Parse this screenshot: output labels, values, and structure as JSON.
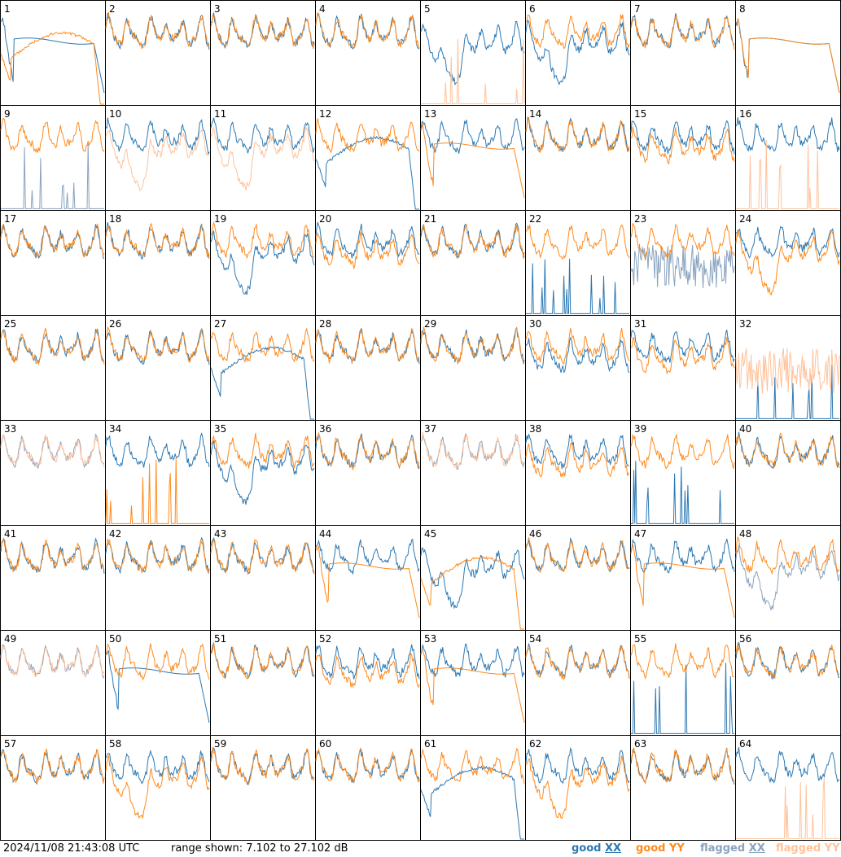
{
  "footer": {
    "timestamp": "2024/11/08 21:43:08 UTC",
    "range": "range shown: 7.102 to 27.102 dB"
  },
  "legend": [
    {
      "word": "good",
      "pol": "XX",
      "color": "#2b78b3"
    },
    {
      "word": "good",
      "pol": "YY",
      "color": "#ff8a1c"
    },
    {
      "word": "flagged",
      "pol": "XX",
      "color": "#8aa3bf"
    },
    {
      "word": "flagged",
      "pol": "YY",
      "color": "#ffc29a"
    }
  ],
  "colors": {
    "good_xx": "#2b78b3",
    "good_yy": "#ff8a1c",
    "flagged_xx": "#8aa3bf",
    "flagged_yy": "#ffc29a"
  },
  "chart_data": {
    "type": "line",
    "layout": "8x8 small multiples",
    "ylim_db": [
      7.102,
      27.102
    ],
    "antennas": [
      {
        "id": "1",
        "xx": "hump",
        "yy": "collapse",
        "xxf": false,
        "yyf": false
      },
      {
        "id": "2",
        "xx": "normal",
        "yy": "normal",
        "xxf": false,
        "yyf": false
      },
      {
        "id": "3",
        "xx": "normal",
        "yy": "normal",
        "xxf": false,
        "yyf": false
      },
      {
        "id": "4",
        "xx": "normal",
        "yy": "normal",
        "xxf": false,
        "yyf": false
      },
      {
        "id": "5",
        "xx": "dip",
        "yy": "spikes",
        "xxf": false,
        "yyf": true
      },
      {
        "id": "6",
        "xx": "dip",
        "yy": "normal",
        "xxf": false,
        "yyf": false
      },
      {
        "id": "7",
        "xx": "normal",
        "yy": "normal",
        "xxf": false,
        "yyf": false
      },
      {
        "id": "8",
        "xx": "hump",
        "yy": "hump",
        "xxf": false,
        "yyf": false
      },
      {
        "id": "9",
        "xx": "spikes",
        "yy": "normal",
        "xxf": true,
        "yyf": false
      },
      {
        "id": "10",
        "xx": "normal",
        "yy": "dip",
        "xxf": false,
        "yyf": true
      },
      {
        "id": "11",
        "xx": "normal",
        "yy": "dip",
        "xxf": false,
        "yyf": true
      },
      {
        "id": "12",
        "xx": "collapse",
        "yy": "normal",
        "xxf": false,
        "yyf": false
      },
      {
        "id": "13",
        "xx": "normal",
        "yy": "hump",
        "xxf": false,
        "yyf": false
      },
      {
        "id": "14",
        "xx": "normal",
        "yy": "normal",
        "xxf": false,
        "yyf": false
      },
      {
        "id": "15",
        "xx": "normal",
        "yy": "lowered",
        "xxf": false,
        "yyf": false
      },
      {
        "id": "16",
        "xx": "normal",
        "yy": "spikes",
        "xxf": false,
        "yyf": true
      },
      {
        "id": "17",
        "xx": "normal",
        "yy": "normal",
        "xxf": false,
        "yyf": false
      },
      {
        "id": "18",
        "xx": "normal",
        "yy": "normal",
        "xxf": false,
        "yyf": false
      },
      {
        "id": "19",
        "xx": "dip",
        "yy": "normal",
        "xxf": false,
        "yyf": false
      },
      {
        "id": "20",
        "xx": "normal",
        "yy": "lowered",
        "xxf": false,
        "yyf": false
      },
      {
        "id": "21",
        "xx": "normal",
        "yy": "normal",
        "xxf": false,
        "yyf": false
      },
      {
        "id": "22",
        "xx": "spikes",
        "yy": "normal",
        "xxf": false,
        "yyf": false
      },
      {
        "id": "23",
        "xx": "noisy",
        "yy": "normal",
        "xxf": true,
        "yyf": false
      },
      {
        "id": "24",
        "xx": "normal",
        "yy": "dip",
        "xxf": false,
        "yyf": false
      },
      {
        "id": "25",
        "xx": "normal",
        "yy": "normal",
        "xxf": false,
        "yyf": false
      },
      {
        "id": "26",
        "xx": "normal",
        "yy": "normal",
        "xxf": false,
        "yyf": false
      },
      {
        "id": "27",
        "xx": "collapse",
        "yy": "normal",
        "xxf": false,
        "yyf": false
      },
      {
        "id": "28",
        "xx": "normal",
        "yy": "normal",
        "xxf": false,
        "yyf": false
      },
      {
        "id": "29",
        "xx": "normal",
        "yy": "normal",
        "xxf": false,
        "yyf": false
      },
      {
        "id": "30",
        "xx": "lowered",
        "yy": "normal",
        "xxf": false,
        "yyf": false
      },
      {
        "id": "31",
        "xx": "normal",
        "yy": "lowered",
        "xxf": false,
        "yyf": false
      },
      {
        "id": "32",
        "xx": "spikes",
        "yy": "noisy",
        "xxf": false,
        "yyf": true
      },
      {
        "id": "33",
        "xx": "normal",
        "yy": "normal",
        "xxf": true,
        "yyf": true
      },
      {
        "id": "34",
        "xx": "normal",
        "yy": "spikes",
        "xxf": false,
        "yyf": false
      },
      {
        "id": "35",
        "xx": "dip",
        "yy": "normal",
        "xxf": false,
        "yyf": false
      },
      {
        "id": "36",
        "xx": "normal",
        "yy": "normal",
        "xxf": false,
        "yyf": false
      },
      {
        "id": "37",
        "xx": "normal",
        "yy": "normal",
        "xxf": true,
        "yyf": true
      },
      {
        "id": "38",
        "xx": "normal",
        "yy": "lowered",
        "xxf": false,
        "yyf": false
      },
      {
        "id": "39",
        "xx": "spikes",
        "yy": "normal",
        "xxf": false,
        "yyf": false
      },
      {
        "id": "40",
        "xx": "normal",
        "yy": "normal",
        "xxf": false,
        "yyf": false
      },
      {
        "id": "41",
        "xx": "normal",
        "yy": "normal",
        "xxf": false,
        "yyf": false
      },
      {
        "id": "42",
        "xx": "normal",
        "yy": "normal",
        "xxf": false,
        "yyf": false
      },
      {
        "id": "43",
        "xx": "normal",
        "yy": "normal",
        "xxf": false,
        "yyf": false
      },
      {
        "id": "44",
        "xx": "normal",
        "yy": "hump",
        "xxf": false,
        "yyf": false
      },
      {
        "id": "45",
        "xx": "dip",
        "yy": "collapse",
        "xxf": false,
        "yyf": false
      },
      {
        "id": "46",
        "xx": "normal",
        "yy": "normal",
        "xxf": false,
        "yyf": false
      },
      {
        "id": "47",
        "xx": "normal",
        "yy": "hump",
        "xxf": false,
        "yyf": false
      },
      {
        "id": "48",
        "xx": "dip",
        "yy": "normal",
        "xxf": true,
        "yyf": false
      },
      {
        "id": "49",
        "xx": "normal",
        "yy": "normal",
        "xxf": true,
        "yyf": true
      },
      {
        "id": "50",
        "xx": "hump",
        "yy": "normal",
        "xxf": false,
        "yyf": false
      },
      {
        "id": "51",
        "xx": "normal",
        "yy": "normal",
        "xxf": false,
        "yyf": false
      },
      {
        "id": "52",
        "xx": "normal",
        "yy": "lowered",
        "xxf": false,
        "yyf": false
      },
      {
        "id": "53",
        "xx": "normal",
        "yy": "hump",
        "xxf": false,
        "yyf": false
      },
      {
        "id": "54",
        "xx": "normal",
        "yy": "normal",
        "xxf": false,
        "yyf": false
      },
      {
        "id": "55",
        "xx": "spikes",
        "yy": "normal",
        "xxf": false,
        "yyf": false
      },
      {
        "id": "56",
        "xx": "normal",
        "yy": "normal",
        "xxf": false,
        "yyf": false
      },
      {
        "id": "57",
        "xx": "normal",
        "yy": "normal",
        "xxf": false,
        "yyf": false
      },
      {
        "id": "58",
        "xx": "normal",
        "yy": "dip",
        "xxf": false,
        "yyf": false
      },
      {
        "id": "59",
        "xx": "normal",
        "yy": "normal",
        "xxf": false,
        "yyf": false
      },
      {
        "id": "60",
        "xx": "normal",
        "yy": "normal",
        "xxf": false,
        "yyf": false
      },
      {
        "id": "61",
        "xx": "collapse",
        "yy": "normal",
        "xxf": false,
        "yyf": false
      },
      {
        "id": "62",
        "xx": "normal",
        "yy": "dip",
        "xxf": false,
        "yyf": false
      },
      {
        "id": "63",
        "xx": "normal",
        "yy": "normal",
        "xxf": false,
        "yyf": false
      },
      {
        "id": "64",
        "xx": "normal",
        "yy": "spikes",
        "xxf": false,
        "yyf": true
      }
    ]
  }
}
